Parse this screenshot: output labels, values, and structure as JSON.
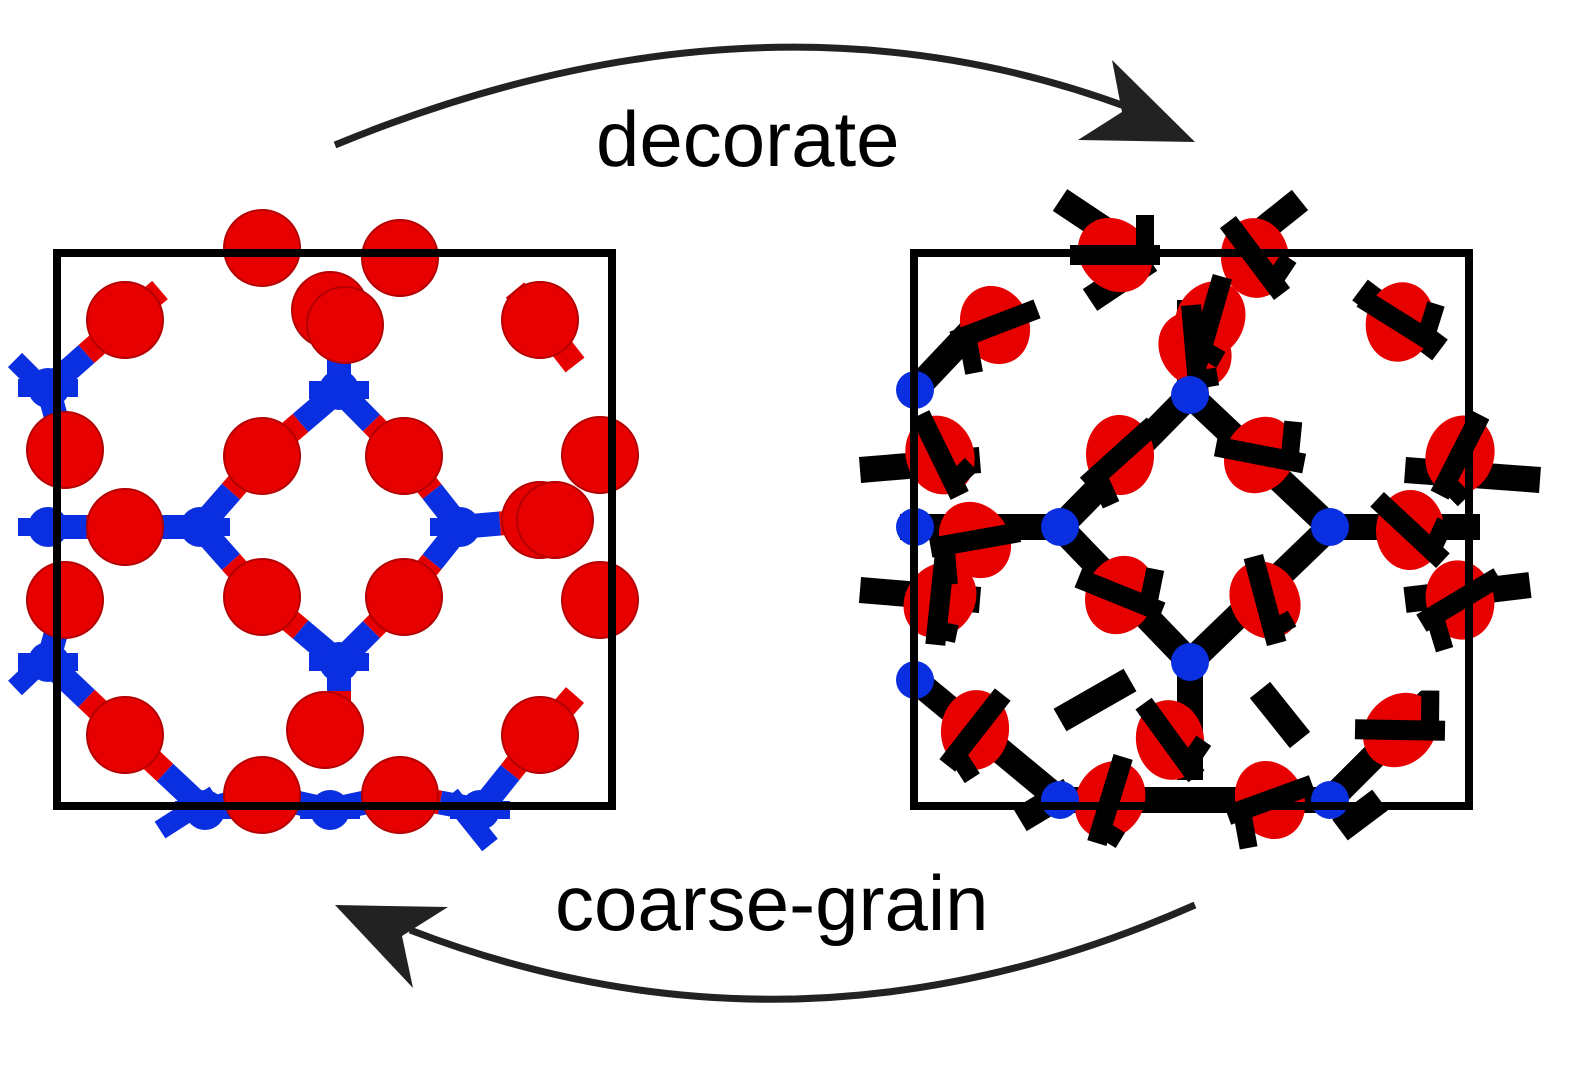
{
  "labels": {
    "forward": "decorate",
    "backward": "coarse-grain"
  },
  "colors": {
    "bead": "#e60000",
    "node": "#0a2fe0",
    "frame": "#000000",
    "decoration": "#000000"
  },
  "panels": [
    {
      "name": "coarse-grained-structure",
      "style": "beads-and-nodes"
    },
    {
      "name": "decorated-structure",
      "style": "atomistic-overlay"
    }
  ],
  "arrows": [
    {
      "name": "decorate-arrow",
      "direction": "left-to-right"
    },
    {
      "name": "coarse-grain-arrow",
      "direction": "right-to-left"
    }
  ]
}
